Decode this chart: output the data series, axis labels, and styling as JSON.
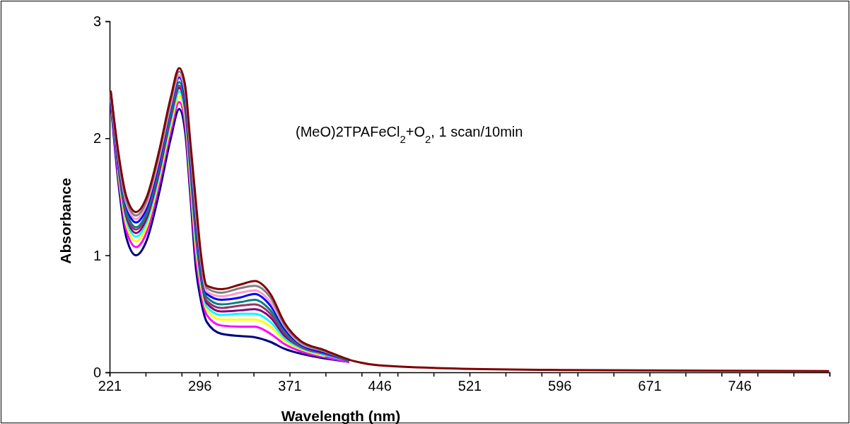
{
  "chart_data": {
    "type": "line",
    "xlabel": "Wavelength (nm)",
    "ylabel": "Absorbance",
    "annotations": [
      "(MeO)2TPAFeCl$_{2}$+O$_{2}$, 1 scan/10min"
    ],
    "x": [
      222,
      228,
      235,
      243,
      252,
      262,
      272,
      279,
      284,
      288,
      293,
      297,
      302,
      314,
      330,
      342,
      355,
      367,
      380,
      400,
      420,
      445,
      500,
      600,
      820
    ],
    "xlim": [
      221,
      821
    ],
    "xticks": [
      221,
      {
        "value": 251,
        "label": null
      },
      {
        "value": 281,
        "label": null
      },
      296,
      {
        "value": 311,
        "label": null
      },
      {
        "value": 341,
        "label": null
      },
      371,
      {
        "value": 401,
        "label": null
      },
      {
        "value": 431,
        "label": null
      },
      446,
      {
        "value": 461,
        "label": null
      },
      {
        "value": 491,
        "label": null
      },
      521,
      {
        "value": 551,
        "label": null
      },
      {
        "value": 581,
        "label": null
      },
      596,
      {
        "value": 611,
        "label": null
      },
      {
        "value": 641,
        "label": null
      },
      671,
      {
        "value": 701,
        "label": null
      },
      {
        "value": 731,
        "label": null
      },
      746,
      {
        "value": 761,
        "label": null
      },
      {
        "value": 791,
        "label": null
      },
      {
        "value": 821,
        "label": null
      }
    ],
    "ylim": [
      0,
      3
    ],
    "yticks": [
      0,
      1,
      2,
      3
    ],
    "grid": false,
    "marker": "none",
    "line_style": "solid",
    "series": [
      {
        "color": "#000080",
        "values": [
          2.3,
          1.65,
          1.15,
          1.0,
          1.13,
          1.52,
          2.0,
          2.25,
          2.05,
          1.55,
          0.88,
          0.62,
          0.43,
          0.33,
          0.31,
          0.3,
          0.26,
          0.2,
          0.16,
          0.12,
          0.09,
          null,
          null,
          null,
          null
        ]
      },
      {
        "color": "#ff00ff",
        "values": [
          2.32,
          1.7,
          1.21,
          1.07,
          1.2,
          1.59,
          2.06,
          2.31,
          2.12,
          1.63,
          0.98,
          0.69,
          0.49,
          0.4,
          0.39,
          0.39,
          0.33,
          0.24,
          0.18,
          0.13,
          0.09,
          null,
          null,
          null,
          null
        ]
      },
      {
        "color": "#ffff00",
        "values": [
          null,
          1.73,
          1.26,
          1.12,
          1.25,
          1.64,
          2.11,
          2.36,
          2.18,
          1.69,
          1.06,
          0.75,
          0.53,
          0.45,
          0.45,
          0.45,
          0.39,
          0.27,
          0.2,
          0.14,
          null,
          null,
          null,
          null,
          null
        ]
      },
      {
        "color": "#00ffff",
        "values": [
          2.34,
          1.76,
          1.3,
          1.16,
          1.29,
          1.67,
          2.15,
          2.4,
          2.22,
          1.74,
          1.12,
          0.79,
          0.56,
          0.49,
          0.5,
          0.5,
          0.43,
          0.29,
          0.21,
          0.15,
          0.1,
          null,
          null,
          null,
          null
        ]
      },
      {
        "color": "#800080",
        "values": [
          2.35,
          1.78,
          1.33,
          1.19,
          1.32,
          1.7,
          2.18,
          2.43,
          2.25,
          1.78,
          1.17,
          0.82,
          0.59,
          0.52,
          0.53,
          0.54,
          0.47,
          0.31,
          0.22,
          0.16,
          0.1,
          null,
          null,
          null,
          null
        ]
      },
      {
        "color": "#993366",
        "values": [
          2.36,
          1.8,
          1.35,
          1.22,
          1.35,
          1.73,
          2.2,
          2.45,
          2.28,
          1.81,
          1.21,
          0.85,
          0.61,
          0.55,
          0.57,
          0.58,
          0.5,
          0.33,
          0.22,
          0.16,
          0.1,
          null,
          null,
          null,
          null
        ]
      },
      {
        "color": "#008080",
        "values": [
          2.37,
          1.82,
          1.38,
          1.24,
          1.37,
          1.76,
          2.23,
          2.48,
          2.31,
          1.85,
          1.26,
          0.88,
          0.64,
          0.58,
          0.6,
          0.62,
          0.53,
          0.35,
          0.23,
          0.17,
          0.1,
          null,
          null,
          null,
          null
        ]
      },
      {
        "color": "#0000ff",
        "values": [
          2.38,
          1.84,
          1.42,
          1.28,
          1.41,
          1.79,
          2.27,
          2.52,
          2.35,
          1.89,
          1.31,
          0.92,
          0.67,
          0.62,
          0.64,
          0.67,
          0.57,
          0.37,
          0.24,
          0.17,
          0.11,
          null,
          null,
          null,
          null
        ]
      },
      {
        "color": "#ff99cc",
        "values": [
          2.38,
          1.86,
          1.44,
          1.31,
          1.44,
          1.82,
          2.29,
          2.54,
          2.39,
          1.93,
          1.36,
          0.96,
          0.69,
          0.65,
          0.68,
          0.7,
          0.6,
          0.39,
          0.25,
          0.18,
          0.11,
          null,
          null,
          null,
          null
        ]
      },
      {
        "color": "#808080",
        "values": [
          2.39,
          1.88,
          1.47,
          1.34,
          1.47,
          1.85,
          2.32,
          2.57,
          2.42,
          1.96,
          1.4,
          0.99,
          0.72,
          0.68,
          0.72,
          0.74,
          0.64,
          0.4,
          0.26,
          0.18,
          0.11,
          null,
          null,
          null,
          null
        ]
      },
      {
        "color": "#800000",
        "values": [
          2.4,
          1.9,
          1.5,
          1.37,
          1.5,
          1.88,
          2.35,
          2.6,
          2.45,
          2.0,
          1.45,
          1.02,
          0.74,
          0.71,
          0.75,
          0.78,
          0.67,
          0.42,
          0.27,
          0.19,
          0.11,
          0.06,
          0.035,
          0.02,
          0.01
        ]
      }
    ]
  }
}
